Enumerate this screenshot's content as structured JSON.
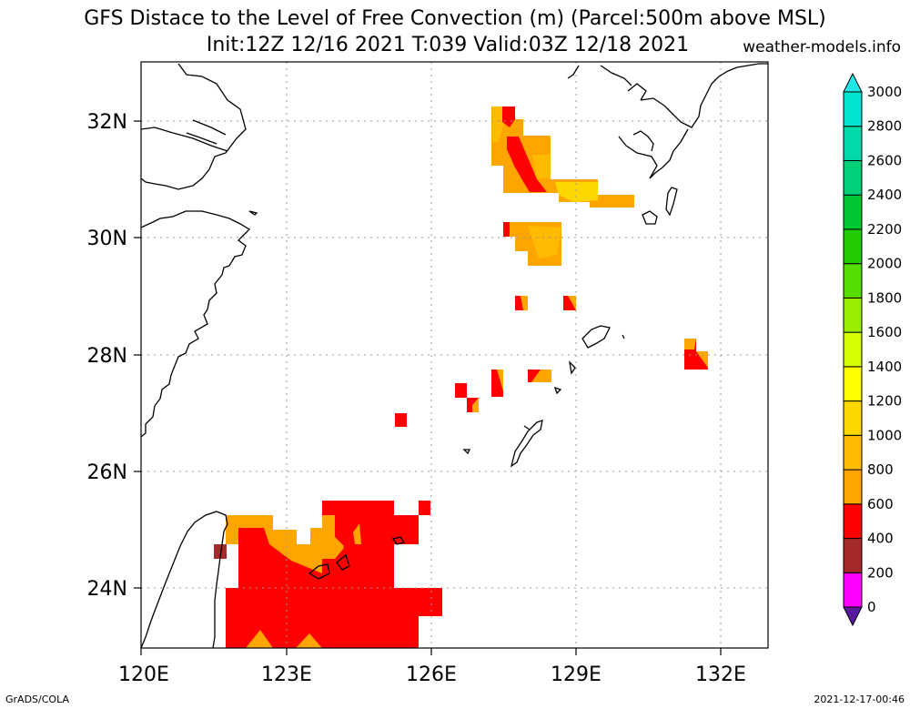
{
  "title": {
    "line1": "GFS Distace to the Level of Free Convection (m) (Parcel:500m above MSL)",
    "line2": "Init:12Z 12/16 2021 T:039 Valid:03Z 12/18 2021",
    "credit": "weather-models.info"
  },
  "footer": {
    "left": "GrADS/COLA",
    "right": "2021-12-17-00:46"
  },
  "map": {
    "lon_labels": [
      "120E",
      "123E",
      "126E",
      "129E",
      "132E"
    ],
    "lat_labels": [
      "32N",
      "30N",
      "28N",
      "26N",
      "24N"
    ],
    "lon_range": [
      120,
      133
    ],
    "lat_range": [
      23,
      33
    ],
    "grid": true,
    "coastline_color": "#000000"
  },
  "colorbar": {
    "levels": [
      "0",
      "200",
      "400",
      "600",
      "800",
      "1000",
      "1200",
      "1400",
      "1600",
      "1800",
      "2000",
      "2200",
      "2400",
      "2600",
      "2800",
      "3000"
    ],
    "colors": [
      "#5a1aa0",
      "#ff00ff",
      "#a52a2a",
      "#ff0000",
      "#ffa500",
      "#ffbb00",
      "#ffd700",
      "#ffff00",
      "#d4ff00",
      "#99ee00",
      "#55dd00",
      "#22cc00",
      "#00c833",
      "#00d077",
      "#00d9aa",
      "#00e5d0",
      "#22e8e8"
    ]
  },
  "field_cells": [
    {
      "lon": 127.35,
      "lat": 31.8,
      "color": "#ffa500"
    },
    {
      "lon": 127.6,
      "lat": 31.5,
      "color": "#ff0000"
    },
    {
      "lon": 128.0,
      "lat": 31.4,
      "color": "#ffa500"
    },
    {
      "lon": 127.85,
      "lat": 31.0,
      "color": "#ff0000"
    },
    {
      "lon": 128.3,
      "lat": 31.0,
      "color": "#ffbb00"
    },
    {
      "lon": 128.9,
      "lat": 30.8,
      "color": "#ffbb00"
    },
    {
      "lon": 129.7,
      "lat": 30.6,
      "color": "#ffd700"
    },
    {
      "lon": 128.2,
      "lat": 30.0,
      "color": "#ffbb00"
    },
    {
      "lon": 127.6,
      "lat": 30.1,
      "color": "#ff0000"
    },
    {
      "lon": 127.8,
      "lat": 28.9,
      "color": "#ff0000"
    },
    {
      "lon": 128.8,
      "lat": 28.9,
      "color": "#ffa500"
    },
    {
      "lon": 131.3,
      "lat": 28.0,
      "color": "#ff0000"
    },
    {
      "lon": 128.2,
      "lat": 27.6,
      "color": "#ff0000"
    },
    {
      "lon": 127.4,
      "lat": 27.4,
      "color": "#ff0000"
    },
    {
      "lon": 126.6,
      "lat": 27.35,
      "color": "#ff0000"
    },
    {
      "lon": 126.8,
      "lat": 27.05,
      "color": "#ff0000"
    },
    {
      "lon": 125.4,
      "lat": 26.85,
      "color": "#ff0000"
    },
    {
      "lon": 124.7,
      "lat": 25.0,
      "color": "#ff0000"
    },
    {
      "lon": 123.0,
      "lat": 24.9,
      "color": "#ffa500"
    },
    {
      "lon": 122.7,
      "lat": 24.0,
      "color": "#ff0000"
    },
    {
      "lon": 125.0,
      "lat": 23.6,
      "color": "#ff0000"
    },
    {
      "lon": 121.9,
      "lat": 24.6,
      "color": "#a52a2a"
    }
  ]
}
